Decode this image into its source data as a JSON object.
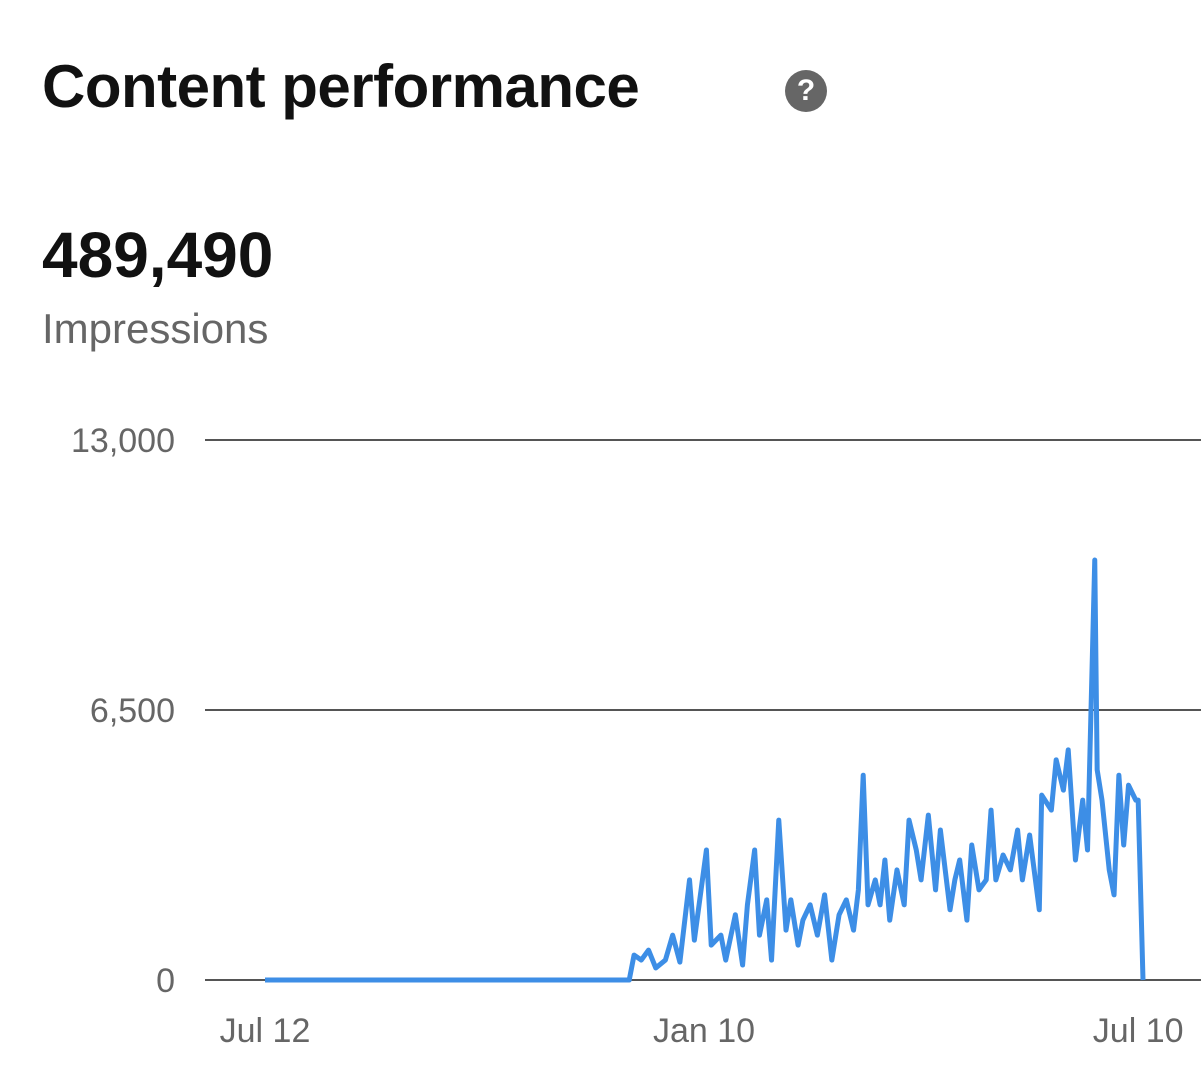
{
  "header": {
    "title": "Content performance",
    "help_icon": "question-circle-icon"
  },
  "summary": {
    "total": "489,490",
    "metric": "Impressions"
  },
  "chart_data": {
    "type": "line",
    "title": "Content performance",
    "ylabel": "Impressions",
    "xlabel": "",
    "ylim": [
      0,
      13000
    ],
    "y_ticks": [
      {
        "value": 13000,
        "label": "13,000"
      },
      {
        "value": 6500,
        "label": "6,500"
      },
      {
        "value": 0,
        "label": "0"
      }
    ],
    "x_range_days": [
      0,
      364
    ],
    "x_ticks": [
      {
        "day": 0,
        "label": "Jul 12"
      },
      {
        "day": 182,
        "label": "Jan 10"
      },
      {
        "day": 362,
        "label": "Jul 10"
      }
    ],
    "grid": true,
    "color": "#3d8ee6",
    "series": [
      {
        "name": "Impressions",
        "points": [
          [
            0,
            0
          ],
          [
            151,
            0
          ],
          [
            153,
            600
          ],
          [
            156,
            480
          ],
          [
            159,
            720
          ],
          [
            162,
            290
          ],
          [
            166,
            480
          ],
          [
            169,
            1080
          ],
          [
            172,
            430
          ],
          [
            176,
            2410
          ],
          [
            178,
            960
          ],
          [
            183,
            3130
          ],
          [
            185,
            840
          ],
          [
            189,
            1080
          ],
          [
            191,
            480
          ],
          [
            195,
            1570
          ],
          [
            198,
            360
          ],
          [
            200,
            1810
          ],
          [
            203,
            3130
          ],
          [
            205,
            1080
          ],
          [
            208,
            1930
          ],
          [
            210,
            480
          ],
          [
            213,
            3850
          ],
          [
            216,
            1200
          ],
          [
            218,
            1930
          ],
          [
            221,
            840
          ],
          [
            223,
            1440
          ],
          [
            226,
            1810
          ],
          [
            229,
            1080
          ],
          [
            232,
            2050
          ],
          [
            235,
            480
          ],
          [
            238,
            1570
          ],
          [
            241,
            1930
          ],
          [
            244,
            1200
          ],
          [
            246,
            2170
          ],
          [
            248,
            4930
          ],
          [
            250,
            1810
          ],
          [
            253,
            2410
          ],
          [
            255,
            1810
          ],
          [
            257,
            2890
          ],
          [
            259,
            1440
          ],
          [
            262,
            2650
          ],
          [
            265,
            1810
          ],
          [
            267,
            3850
          ],
          [
            270,
            3130
          ],
          [
            272,
            2410
          ],
          [
            275,
            3970
          ],
          [
            278,
            2170
          ],
          [
            280,
            3610
          ],
          [
            284,
            1690
          ],
          [
            286,
            2410
          ],
          [
            288,
            2890
          ],
          [
            291,
            1440
          ],
          [
            293,
            3250
          ],
          [
            296,
            2170
          ],
          [
            299,
            2410
          ],
          [
            301,
            4090
          ],
          [
            303,
            2410
          ],
          [
            306,
            3010
          ],
          [
            309,
            2650
          ],
          [
            312,
            3610
          ],
          [
            314,
            2410
          ],
          [
            317,
            3490
          ],
          [
            321,
            1690
          ],
          [
            322,
            4450
          ],
          [
            326,
            4090
          ],
          [
            328,
            5300
          ],
          [
            331,
            4570
          ],
          [
            333,
            5540
          ],
          [
            336,
            2890
          ],
          [
            339,
            4330
          ],
          [
            341,
            3130
          ],
          [
            344,
            10110
          ],
          [
            345,
            5060
          ],
          [
            347,
            4330
          ],
          [
            350,
            2650
          ],
          [
            352,
            2050
          ],
          [
            354,
            4930
          ],
          [
            356,
            3250
          ],
          [
            358,
            4690
          ],
          [
            361,
            4330
          ],
          [
            362,
            4330
          ],
          [
            364,
            0
          ]
        ]
      }
    ]
  }
}
